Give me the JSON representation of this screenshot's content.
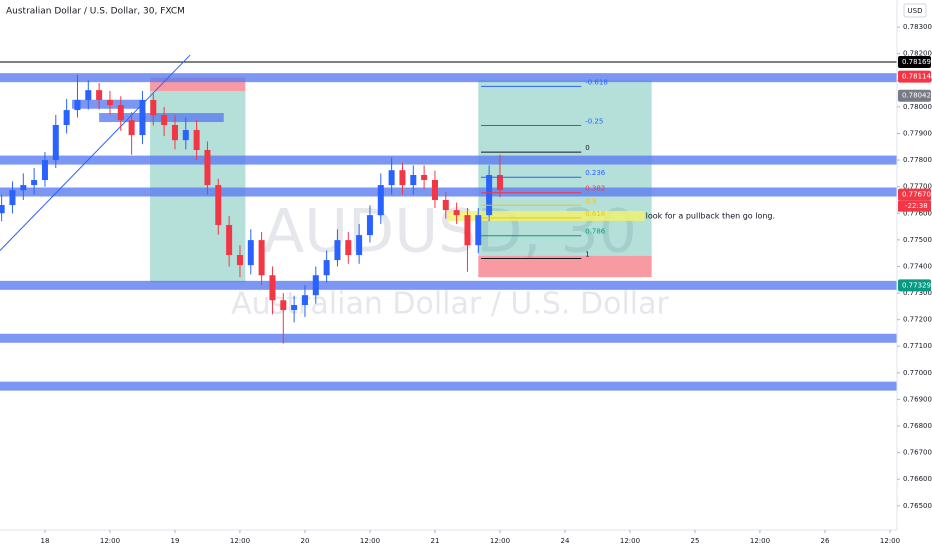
{
  "chart_data": {
    "type": "candlestick",
    "title": "Australian Dollar / U.S. Dollar, 30, FXCM",
    "watermark": "AUDUSD, 30",
    "watermark_subtitle": "Australian Dollar / U.S. Dollar",
    "currency": "USD",
    "up_color": "#2962ff",
    "down_color": "#f23645",
    "x": [
      -8,
      -6,
      -4,
      -2,
      0,
      2,
      4,
      6,
      8,
      10,
      12,
      14,
      16,
      18,
      20,
      22,
      24,
      26,
      28,
      30,
      32,
      34,
      36,
      38,
      40,
      42,
      44,
      46,
      48,
      50,
      52,
      54,
      56,
      58,
      60,
      62,
      64,
      66,
      68,
      70,
      72,
      74,
      76,
      78,
      80,
      82,
      84
    ],
    "open": [
      0.776,
      0.77631,
      0.77687,
      0.77706,
      0.77725,
      0.778,
      0.77932,
      0.77988,
      0.78026,
      0.78063,
      0.78026,
      0.78007,
      0.7795,
      0.77894,
      0.78026,
      0.77969,
      0.77932,
      0.77875,
      0.77913,
      0.77838,
      0.77706,
      0.77556,
      0.77443,
      0.77405,
      0.77499,
      0.77367,
      0.77273,
      0.77236,
      0.77255,
      0.77292,
      0.77367,
      0.77424,
      0.77499,
      0.77443,
      0.77518,
      0.77593,
      0.77706,
      0.77762,
      0.77706,
      0.77744,
      0.77725,
      0.7765,
      0.77612,
      0.77593,
      0.7748,
      0.77593,
      0.77744
    ],
    "high": [
      0.7767,
      0.7772,
      0.7775,
      0.7777,
      0.7783,
      0.7797,
      0.7803,
      0.7812,
      0.781,
      0.7809,
      0.7806,
      0.7804,
      0.7798,
      0.7806,
      0.7805,
      0.78,
      0.7797,
      0.7796,
      0.7795,
      0.7787,
      0.7773,
      0.7759,
      0.7748,
      0.7754,
      0.7753,
      0.774,
      0.773,
      0.7729,
      0.7733,
      0.774,
      0.7746,
      0.7754,
      0.7753,
      0.7756,
      0.7763,
      0.7775,
      0.7781,
      0.7779,
      0.7778,
      0.7778,
      0.7776,
      0.7768,
      0.7764,
      0.7762,
      0.7762,
      0.7778,
      0.7782
    ],
    "low": [
      0.7757,
      0.776,
      0.7765,
      0.7767,
      0.777,
      0.7777,
      0.779,
      0.7796,
      0.7799,
      0.7799,
      0.7797,
      0.7791,
      0.7782,
      0.7786,
      0.7793,
      0.7789,
      0.7784,
      0.7784,
      0.778,
      0.7767,
      0.7752,
      0.774,
      0.7736,
      0.7737,
      0.7733,
      0.7722,
      0.7711,
      0.7719,
      0.7721,
      0.7726,
      0.7734,
      0.774,
      0.7741,
      0.7741,
      0.7749,
      0.7756,
      0.7767,
      0.7767,
      0.7767,
      0.7769,
      0.7762,
      0.7758,
      0.7756,
      0.7738,
      0.7745,
      0.7757,
      0.7766
    ],
    "close": [
      0.77631,
      0.77687,
      0.77706,
      0.77725,
      0.778,
      0.77932,
      0.77988,
      0.78026,
      0.78063,
      0.78026,
      0.78007,
      0.7795,
      0.77894,
      0.78026,
      0.77969,
      0.77932,
      0.77875,
      0.77913,
      0.77838,
      0.77706,
      0.77556,
      0.77443,
      0.77405,
      0.77499,
      0.77367,
      0.77273,
      0.77236,
      0.77255,
      0.77292,
      0.77367,
      0.77424,
      0.77499,
      0.77443,
      0.77518,
      0.77593,
      0.77706,
      0.77762,
      0.77706,
      0.77744,
      0.77725,
      0.7765,
      0.77612,
      0.77593,
      0.7748,
      0.77593,
      0.77744,
      0.77687
    ],
    "xlim": [
      -8.3,
      157.3
    ],
    "ylim": [
      0.76409,
      0.78402
    ],
    "xticks": [
      {
        "value": 0,
        "label": "18"
      },
      {
        "value": 12,
        "label": "12:00"
      },
      {
        "value": 24,
        "label": "19"
      },
      {
        "value": 36,
        "label": "12:00"
      },
      {
        "value": 48,
        "label": "20"
      },
      {
        "value": 60,
        "label": "12:00"
      },
      {
        "value": 72,
        "label": "21"
      },
      {
        "value": 84,
        "label": "12:00"
      },
      {
        "value": 96,
        "label": "24"
      },
      {
        "value": 108,
        "label": "12:00"
      },
      {
        "value": 120,
        "label": "25"
      },
      {
        "value": 132,
        "label": "12:00"
      },
      {
        "value": 144,
        "label": "26"
      },
      {
        "value": 156,
        "label": "12:00"
      }
    ],
    "yticks": [
      {
        "value": 0.783,
        "label": "0.78300"
      },
      {
        "value": 0.782,
        "label": "0.78200"
      },
      {
        "value": 0.781,
        "label": "0.78100"
      },
      {
        "value": 0.78,
        "label": "0.78000"
      },
      {
        "value": 0.779,
        "label": "0.77900"
      },
      {
        "value": 0.778,
        "label": "0.77800"
      },
      {
        "value": 0.777,
        "label": "0.77700"
      },
      {
        "value": 0.776,
        "label": "0.77600"
      },
      {
        "value": 0.775,
        "label": "0.77500"
      },
      {
        "value": 0.774,
        "label": "0.77400"
      },
      {
        "value": 0.773,
        "label": "0.77300"
      },
      {
        "value": 0.772,
        "label": "0.77200"
      },
      {
        "value": 0.771,
        "label": "0.77100"
      },
      {
        "value": 0.77,
        "label": "0.77000"
      },
      {
        "value": 0.769,
        "label": "0.76900"
      },
      {
        "value": 0.768,
        "label": "0.76800"
      },
      {
        "value": 0.767,
        "label": "0.76700"
      },
      {
        "value": 0.766,
        "label": "0.76600"
      },
      {
        "value": 0.765,
        "label": "0.76500"
      }
    ],
    "price_labels": [
      {
        "value": 0.78169,
        "label": "0.78169",
        "color": "#000000"
      },
      {
        "value": 0.78114,
        "label": "0.78114",
        "color": "#f23645"
      },
      {
        "value": 0.78042,
        "label": "0.78042",
        "color": "#787b86"
      },
      {
        "value": 0.7767,
        "label": "0.77670",
        "color": "#f23645"
      },
      {
        "value": 0.77329,
        "label": "0.77329",
        "color": "#089981"
      }
    ],
    "countdown": "-22:38",
    "line_level": 0.78169,
    "levels": [
      {
        "price": 0.7811
      },
      {
        "price": 0.7801,
        "from": 5,
        "to": 18
      },
      {
        "price": 0.7796,
        "from": 10,
        "to": 33
      },
      {
        "price": 0.778
      },
      {
        "price": 0.7768
      },
      {
        "price": 0.77329
      },
      {
        "price": 0.7713
      },
      {
        "price": 0.7695
      }
    ],
    "trendline": {
      "x": [
        -8.3,
        26.8
      ],
      "y": [
        0.7746,
        0.78195
      ]
    },
    "positions": [
      {
        "from": 19.4,
        "to": 37,
        "entry": 0.7806,
        "stop": 0.7811,
        "target": 0.7734
      },
      {
        "from": 80,
        "to": 112,
        "entry": 0.7744,
        "stop": 0.7736,
        "target": 0.781
      }
    ],
    "fib": {
      "from": 80.5,
      "to": 99,
      "p0": 0.7783,
      "p1": 0.7743,
      "levels": [
        {
          "value": -0.618,
          "label": "-0.618"
        },
        {
          "value": -0.25,
          "label": "-0.25"
        },
        0,
        {
          "value": 0.236,
          "label": "0.236"
        },
        {
          "value": 0.382,
          "label": "0.382"
        },
        {
          "value": 0.5,
          "label": "0.5"
        },
        {
          "value": 0.618,
          "label": "0.618"
        },
        {
          "value": 0.786,
          "label": "0.786"
        },
        1
      ]
    },
    "highlight": {
      "from": 74.3,
      "to": 110.7,
      "price": 0.7759
    },
    "annotation": {
      "text": "look for a pullback then go long.",
      "x": 110.9,
      "y": 0.7759
    }
  }
}
